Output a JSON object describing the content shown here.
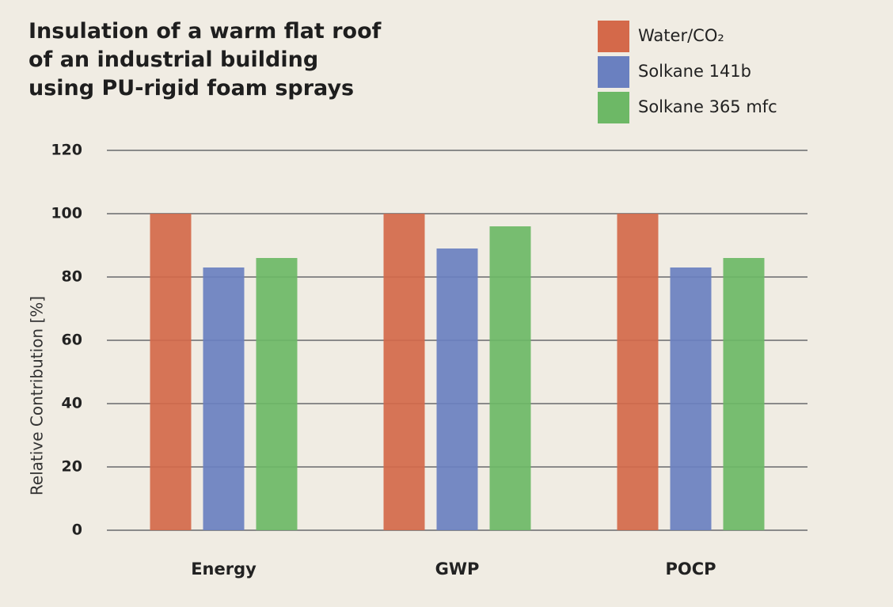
{
  "chart_data": {
    "type": "bar",
    "title": [
      "Insulation of a warm flat roof",
      "of an industrial building",
      "using PU-rigid foam sprays"
    ],
    "y_label": "Relative Contribution [%]",
    "categories": [
      "Energy",
      "GWP",
      "POCP"
    ],
    "series": [
      {
        "name": "Water/CO₂",
        "color": "#d4694a",
        "values": [
          100,
          100,
          100
        ]
      },
      {
        "name": "Solkane 141b",
        "color": "#6a80c0",
        "values": [
          83,
          89,
          83
        ]
      },
      {
        "name": "Solkane 365 mfc",
        "color": "#6db866",
        "values": [
          86,
          96,
          86
        ]
      }
    ],
    "ylim": [
      0,
      120
    ],
    "yticks": [
      0,
      20,
      40,
      60,
      80,
      100,
      120
    ],
    "grid": true
  }
}
